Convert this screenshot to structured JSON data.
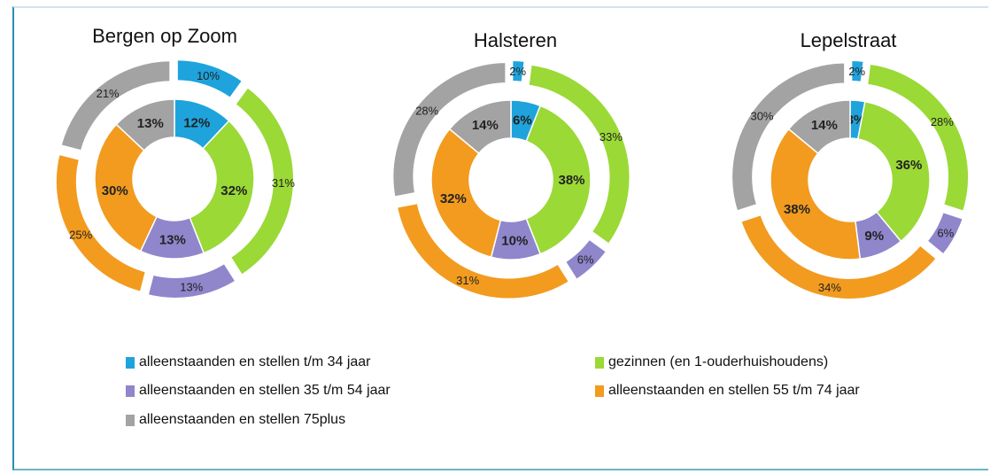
{
  "chart_data": [
    {
      "type": "pie",
      "title": "Bergen op Zoom",
      "series": [
        {
          "values": [
            12,
            32,
            13,
            30,
            13
          ],
          "ring": "inner"
        },
        {
          "values": [
            10,
            31,
            13,
            25,
            21
          ],
          "ring": "outer"
        }
      ]
    },
    {
      "type": "pie",
      "title": "Halsteren",
      "series": [
        {
          "values": [
            6,
            38,
            10,
            32,
            14
          ],
          "ring": "inner"
        },
        {
          "values": [
            2,
            33,
            6,
            31,
            28
          ],
          "ring": "outer"
        }
      ]
    },
    {
      "type": "pie",
      "title": "Lepelstraat",
      "series": [
        {
          "values": [
            3,
            36,
            9,
            38,
            14
          ],
          "ring": "inner"
        },
        {
          "values": [
            2,
            28,
            6,
            34,
            30
          ],
          "ring": "outer"
        }
      ]
    }
  ],
  "categories": [
    "alleenstaanden en stellen t/m 34 jaar",
    "gezinnen (en 1-ouderhuishoudens)",
    "alleenstaanden en stellen 35 t/m 54 jaar",
    "alleenstaanden en stellen 55 t/m 74 jaar",
    "alleenstaanden en stellen 75plus"
  ],
  "colors": [
    "#1fa3dc",
    "#9ad936",
    "#8f86cc",
    "#f29b1f",
    "#a3a3a3"
  ]
}
